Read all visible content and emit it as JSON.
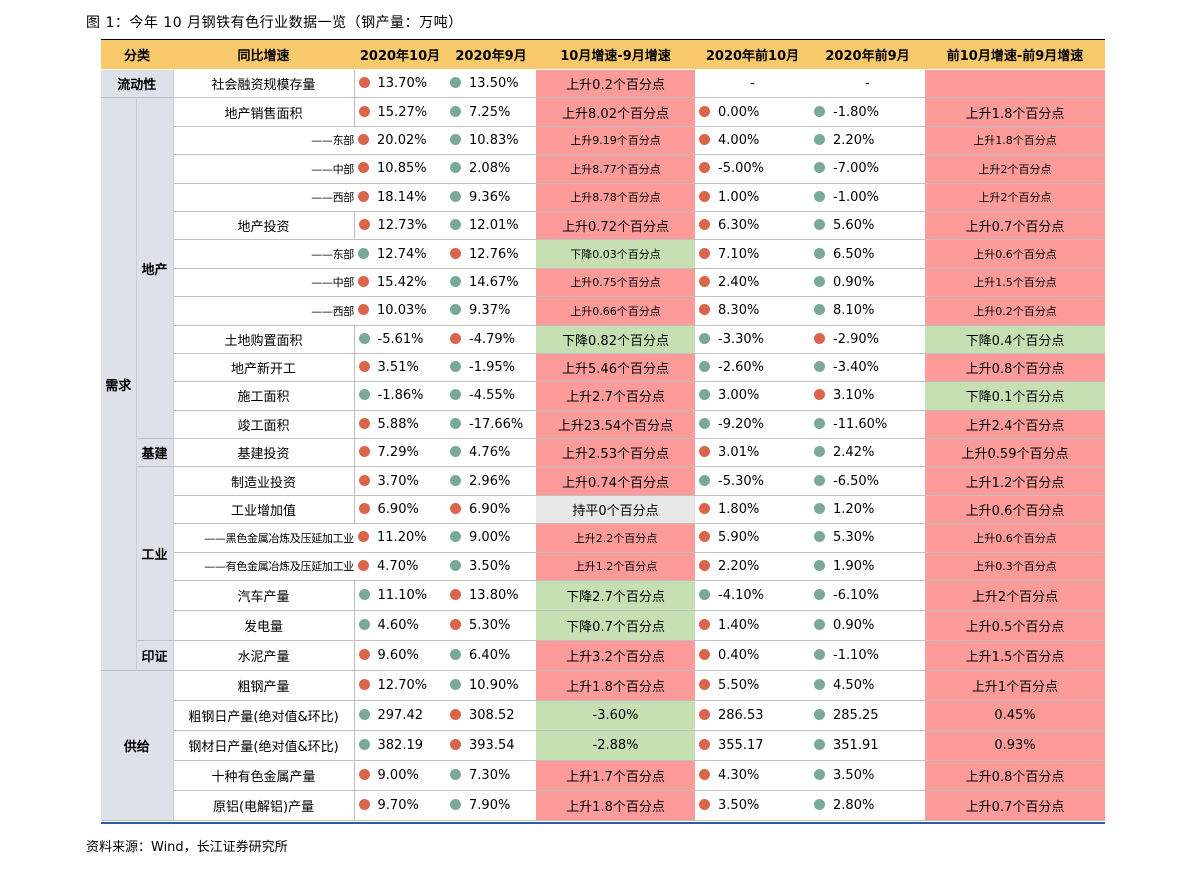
{
  "title": "图 1：今年 10 月钢铁有色行业数据一览（钢产量：万吨）",
  "source": "资料来源：Wind，长江证券研究所",
  "colors": {
    "header_bg": "#f7c96b",
    "increase_bg": "#fd9a9a",
    "decrease_bg": "#c6e0b4",
    "flat_bg": "#e7e7e7",
    "dot_up": "#d9664a",
    "dot_down": "#7aa89a"
  },
  "headers": {
    "category": "分类",
    "indicator": "同比增速",
    "oct": "2020年10月",
    "sep": "2020年9月",
    "oct_sep": "10月增速-9月增速",
    "ytd_oct": "2020年前10月",
    "ytd_sep": "2020年前9月",
    "ytd_diff": "前10月增速-前9月增速"
  },
  "categories": {
    "liquidity": "流动性",
    "demand": "需求",
    "property": "地产",
    "infra": "基建",
    "industry": "工业",
    "print": "印证",
    "supply": "供给"
  },
  "rows": [
    {
      "label": "社会融资规模存量",
      "oct": "13.70%",
      "oct_dot": "red",
      "sep": "13.50%",
      "sep_dot": "teal",
      "d1": "上升0.2个百分点",
      "d1c": "pink",
      "y10": "-",
      "y9": "-",
      "d2": "",
      "d2c": "pink"
    },
    {
      "label": "地产销售面积",
      "oct": "15.27%",
      "oct_dot": "red",
      "sep": "7.25%",
      "sep_dot": "teal",
      "d1": "上升8.02个百分点",
      "d1c": "pink",
      "y10": "0.00%",
      "y10_dot": "red",
      "y9": "-1.80%",
      "y9_dot": "teal",
      "d2": "上升1.8个百分点",
      "d2c": "pink"
    },
    {
      "label": "——东部",
      "oct": "20.02%",
      "oct_dot": "red",
      "sep": "10.83%",
      "sep_dot": "teal",
      "d1": "上升9.19个百分点",
      "d1c": "pink",
      "y10": "4.00%",
      "y10_dot": "red",
      "y9": "2.20%",
      "y9_dot": "teal",
      "d2": "上升1.8个百分点",
      "d2c": "pink"
    },
    {
      "label": "——中部",
      "oct": "10.85%",
      "oct_dot": "red",
      "sep": "2.08%",
      "sep_dot": "teal",
      "d1": "上升8.77个百分点",
      "d1c": "pink",
      "y10": "-5.00%",
      "y10_dot": "red",
      "y9": "-7.00%",
      "y9_dot": "teal",
      "d2": "上升2个百分点",
      "d2c": "pink"
    },
    {
      "label": "——西部",
      "oct": "18.14%",
      "oct_dot": "red",
      "sep": "9.36%",
      "sep_dot": "teal",
      "d1": "上升8.78个百分点",
      "d1c": "pink",
      "y10": "1.00%",
      "y10_dot": "red",
      "y9": "-1.00%",
      "y9_dot": "teal",
      "d2": "上升2个百分点",
      "d2c": "pink"
    },
    {
      "label": "地产投资",
      "oct": "12.73%",
      "oct_dot": "red",
      "sep": "12.01%",
      "sep_dot": "teal",
      "d1": "上升0.72个百分点",
      "d1c": "pink",
      "y10": "6.30%",
      "y10_dot": "red",
      "y9": "5.60%",
      "y9_dot": "teal",
      "d2": "上升0.7个百分点",
      "d2c": "pink"
    },
    {
      "label": "——东部",
      "oct": "12.74%",
      "oct_dot": "teal",
      "sep": "12.76%",
      "sep_dot": "red",
      "d1": "下降0.03个百分点",
      "d1c": "green",
      "y10": "7.10%",
      "y10_dot": "red",
      "y9": "6.50%",
      "y9_dot": "teal",
      "d2": "上升0.6个百分点",
      "d2c": "pink"
    },
    {
      "label": "——中部",
      "oct": "15.42%",
      "oct_dot": "red",
      "sep": "14.67%",
      "sep_dot": "teal",
      "d1": "上升0.75个百分点",
      "d1c": "pink",
      "y10": "2.40%",
      "y10_dot": "red",
      "y9": "0.90%",
      "y9_dot": "teal",
      "d2": "上升1.5个百分点",
      "d2c": "pink"
    },
    {
      "label": "——西部",
      "oct": "10.03%",
      "oct_dot": "red",
      "sep": "9.37%",
      "sep_dot": "teal",
      "d1": "上升0.66个百分点",
      "d1c": "pink",
      "y10": "8.30%",
      "y10_dot": "red",
      "y9": "8.10%",
      "y9_dot": "teal",
      "d2": "上升0.2个百分点",
      "d2c": "pink"
    },
    {
      "label": "土地购置面积",
      "oct": "-5.61%",
      "oct_dot": "teal",
      "sep": "-4.79%",
      "sep_dot": "red",
      "d1": "下降0.82个百分点",
      "d1c": "green",
      "y10": "-3.30%",
      "y10_dot": "teal",
      "y9": "-2.90%",
      "y9_dot": "red",
      "d2": "下降0.4个百分点",
      "d2c": "green"
    },
    {
      "label": "地产新开工",
      "oct": "3.51%",
      "oct_dot": "red",
      "sep": "-1.95%",
      "sep_dot": "teal",
      "d1": "上升5.46个百分点",
      "d1c": "pink",
      "y10": "-2.60%",
      "y10_dot": "teal",
      "y9": "-3.40%",
      "y9_dot": "teal",
      "d2": "上升0.8个百分点",
      "d2c": "pink"
    },
    {
      "label": "施工面积",
      "oct": "-1.86%",
      "oct_dot": "teal",
      "sep": "-4.55%",
      "sep_dot": "teal",
      "d1": "上升2.7个百分点",
      "d1c": "pink",
      "y10": "3.00%",
      "y10_dot": "teal",
      "y9": "3.10%",
      "y9_dot": "red",
      "d2": "下降0.1个百分点",
      "d2c": "green"
    },
    {
      "label": "竣工面积",
      "oct": "5.88%",
      "oct_dot": "red",
      "sep": "-17.66%",
      "sep_dot": "teal",
      "d1": "上升23.54个百分点",
      "d1c": "pink",
      "y10": "-9.20%",
      "y10_dot": "teal",
      "y9": "-11.60%",
      "y9_dot": "teal",
      "d2": "上升2.4个百分点",
      "d2c": "pink"
    },
    {
      "label": "基建投资",
      "oct": "7.29%",
      "oct_dot": "red",
      "sep": "4.76%",
      "sep_dot": "teal",
      "d1": "上升2.53个百分点",
      "d1c": "pink",
      "y10": "3.01%",
      "y10_dot": "red",
      "y9": "2.42%",
      "y9_dot": "teal",
      "d2": "上升0.59个百分点",
      "d2c": "pink"
    },
    {
      "label": "制造业投资",
      "oct": "3.70%",
      "oct_dot": "red",
      "sep": "2.96%",
      "sep_dot": "teal",
      "d1": "上升0.74个百分点",
      "d1c": "pink",
      "y10": "-5.30%",
      "y10_dot": "teal",
      "y9": "-6.50%",
      "y9_dot": "teal",
      "d2": "上升1.2个百分点",
      "d2c": "pink"
    },
    {
      "label": "工业增加值",
      "oct": "6.90%",
      "oct_dot": "red",
      "sep": "6.90%",
      "sep_dot": "red",
      "d1": "持平0个百分点",
      "d1c": "gray",
      "y10": "1.80%",
      "y10_dot": "red",
      "y9": "1.20%",
      "y9_dot": "teal",
      "d2": "上升0.6个百分点",
      "d2c": "pink"
    },
    {
      "label": "——黑色金属冶炼及压延加工业",
      "oct": "11.20%",
      "oct_dot": "red",
      "sep": "9.00%",
      "sep_dot": "teal",
      "d1": "上升2.2个百分点",
      "d1c": "pink",
      "y10": "5.90%",
      "y10_dot": "red",
      "y9": "5.30%",
      "y9_dot": "teal",
      "d2": "上升0.6个百分点",
      "d2c": "pink"
    },
    {
      "label": "——有色金属冶炼及压延加工业",
      "oct": "4.70%",
      "oct_dot": "red",
      "sep": "3.50%",
      "sep_dot": "teal",
      "d1": "上升1.2个百分点",
      "d1c": "pink",
      "y10": "2.20%",
      "y10_dot": "red",
      "y9": "1.90%",
      "y9_dot": "teal",
      "d2": "上升0.3个百分点",
      "d2c": "pink"
    },
    {
      "label": "汽车产量",
      "oct": "11.10%",
      "oct_dot": "teal",
      "sep": "13.80%",
      "sep_dot": "red",
      "d1": "下降2.7个百分点",
      "d1c": "green",
      "y10": "-4.10%",
      "y10_dot": "teal",
      "y9": "-6.10%",
      "y9_dot": "teal",
      "d2": "上升2个百分点",
      "d2c": "pink"
    },
    {
      "label": "发电量",
      "oct": "4.60%",
      "oct_dot": "teal",
      "sep": "5.30%",
      "sep_dot": "red",
      "d1": "下降0.7个百分点",
      "d1c": "green",
      "y10": "1.40%",
      "y10_dot": "red",
      "y9": "0.90%",
      "y9_dot": "teal",
      "d2": "上升0.5个百分点",
      "d2c": "pink"
    },
    {
      "label": "水泥产量",
      "oct": "9.60%",
      "oct_dot": "red",
      "sep": "6.40%",
      "sep_dot": "teal",
      "d1": "上升3.2个百分点",
      "d1c": "pink",
      "y10": "0.40%",
      "y10_dot": "red",
      "y9": "-1.10%",
      "y9_dot": "teal",
      "d2": "上升1.5个百分点",
      "d2c": "pink"
    },
    {
      "label": "粗钢产量",
      "oct": "12.70%",
      "oct_dot": "red",
      "sep": "10.90%",
      "sep_dot": "teal",
      "d1": "上升1.8个百分点",
      "d1c": "pink",
      "y10": "5.50%",
      "y10_dot": "red",
      "y9": "4.50%",
      "y9_dot": "teal",
      "d2": "上升1个百分点",
      "d2c": "pink"
    },
    {
      "label": "粗钢日产量(绝对值&环比)",
      "oct": "297.42",
      "oct_dot": "teal",
      "sep": "308.52",
      "sep_dot": "red",
      "d1": "-3.60%",
      "d1c": "green",
      "y10": "286.53",
      "y10_dot": "red",
      "y9": "285.25",
      "y9_dot": "teal",
      "d2": "0.45%",
      "d2c": "pink"
    },
    {
      "label": "钢材日产量(绝对值&环比)",
      "oct": "382.19",
      "oct_dot": "teal",
      "sep": "393.54",
      "sep_dot": "red",
      "d1": "-2.88%",
      "d1c": "green",
      "y10": "355.17",
      "y10_dot": "red",
      "y9": "351.91",
      "y9_dot": "teal",
      "d2": "0.93%",
      "d2c": "pink"
    },
    {
      "label": "十种有色金属产量",
      "oct": "9.00%",
      "oct_dot": "red",
      "sep": "7.30%",
      "sep_dot": "teal",
      "d1": "上升1.7个百分点",
      "d1c": "pink",
      "y10": "4.30%",
      "y10_dot": "red",
      "y9": "3.50%",
      "y9_dot": "teal",
      "d2": "上升0.8个百分点",
      "d2c": "pink"
    },
    {
      "label": "原铝(电解铝)产量",
      "oct": "9.70%",
      "oct_dot": "red",
      "sep": "7.90%",
      "sep_dot": "teal",
      "d1": "上升1.8个百分点",
      "d1c": "pink",
      "y10": "3.50%",
      "y10_dot": "red",
      "y9": "2.80%",
      "y9_dot": "teal",
      "d2": "上升0.7个百分点",
      "d2c": "pink"
    }
  ]
}
